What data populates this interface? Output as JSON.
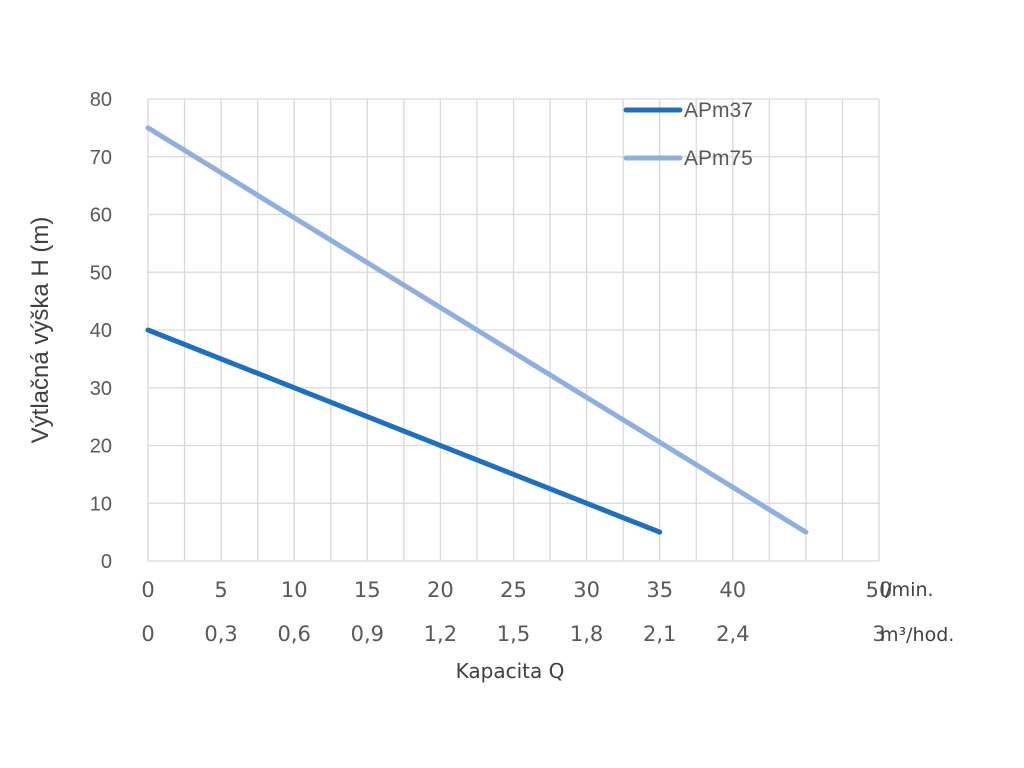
{
  "chart_data": {
    "type": "line",
    "ylabel": "Výtlačná výška H (m)",
    "xlabel": "Kapacita Q",
    "ylim": [
      0,
      80
    ],
    "yticks": [
      0,
      10,
      20,
      30,
      40,
      50,
      60,
      70,
      80
    ],
    "xlim": [
      0,
      50
    ],
    "grid": true,
    "legend_position": "top-right",
    "x_ticks_primary": {
      "unit": "l/min.",
      "values": [
        0,
        5,
        10,
        15,
        20,
        25,
        30,
        35,
        40,
        50
      ],
      "labels": [
        "0",
        "5",
        "10",
        "15",
        "20",
        "25",
        "30",
        "35",
        "40",
        "50"
      ]
    },
    "x_ticks_secondary": {
      "unit": "m³/hod.",
      "values": [
        0,
        5,
        10,
        15,
        20,
        25,
        30,
        35,
        40,
        50
      ],
      "labels": [
        "0",
        "0,3",
        "0,6",
        "0,9",
        "1,2",
        "1,5",
        "1,8",
        "2,1",
        "2,4",
        "3"
      ]
    },
    "series": [
      {
        "name": "APm37",
        "color": "#1f6fc0",
        "x": [
          0,
          35
        ],
        "y": [
          40,
          5
        ]
      },
      {
        "name": "APm75",
        "color": "#8fb0de",
        "x": [
          0,
          45
        ],
        "y": [
          75,
          5
        ]
      }
    ]
  }
}
